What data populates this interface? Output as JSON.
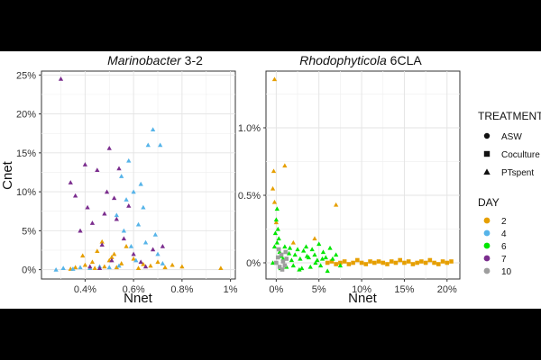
{
  "chart_data": [
    {
      "type": "scatter",
      "title_italic": "Marinobacter",
      "title_rest": " 3-2",
      "xlabel": "Nnet",
      "ylabel": "Cnet",
      "xlim": [
        0.0022,
        0.0102
      ],
      "ylim": [
        -0.012,
        0.255
      ],
      "xticks": [
        {
          "v": 0.004,
          "label": "0.4%"
        },
        {
          "v": 0.006,
          "label": "0.6%"
        },
        {
          "v": 0.008,
          "label": "0.8%"
        },
        {
          "v": 0.01,
          "label": "1%"
        }
      ],
      "yticks": [
        {
          "v": 0,
          "label": "0%"
        },
        {
          "v": 0.05,
          "label": "5%"
        },
        {
          "v": 0.1,
          "label": "10%"
        },
        {
          "v": 0.15,
          "label": "15%"
        },
        {
          "v": 0.2,
          "label": "20%"
        },
        {
          "v": 0.25,
          "label": "25%"
        }
      ],
      "grid": true,
      "series": [
        {
          "day": "2",
          "color": "#E69F00",
          "treatment": "PTspent",
          "points": [
            [
              0.0034,
              0.001
            ],
            [
              0.0036,
              0.003
            ],
            [
              0.004,
              0.006
            ],
            [
              0.0043,
              0.01
            ],
            [
              0.0045,
              0.024
            ],
            [
              0.0047,
              0.036
            ],
            [
              0.0048,
              0.004
            ],
            [
              0.005,
              0.012
            ],
            [
              0.0052,
              0.02
            ],
            [
              0.0053,
              0.003
            ],
            [
              0.0055,
              0.008
            ],
            [
              0.0057,
              0.03
            ],
            [
              0.006,
              0.014
            ],
            [
              0.0062,
              0.002
            ],
            [
              0.0064,
              0.007
            ],
            [
              0.0067,
              0.005
            ],
            [
              0.007,
              0.01
            ],
            [
              0.0073,
              0.003
            ],
            [
              0.0076,
              0.006
            ],
            [
              0.008,
              0.004
            ],
            [
              0.0096,
              0.002
            ],
            [
              0.0039,
              0.018
            ],
            [
              0.0044,
              0.002
            ],
            [
              0.0051,
              0.016
            ]
          ]
        },
        {
          "day": "4",
          "color": "#56B4E9",
          "treatment": "PTspent",
          "points": [
            [
              0.0028,
              0.0
            ],
            [
              0.0031,
              0.002
            ],
            [
              0.0035,
              0.001
            ],
            [
              0.0038,
              0.003
            ],
            [
              0.0042,
              0.002
            ],
            [
              0.0046,
              0.004
            ],
            [
              0.005,
              0.003
            ],
            [
              0.0053,
              0.07
            ],
            [
              0.0055,
              0.12
            ],
            [
              0.0057,
              0.09
            ],
            [
              0.0058,
              0.14
            ],
            [
              0.006,
              0.1
            ],
            [
              0.0062,
              0.058
            ],
            [
              0.0064,
              0.08
            ],
            [
              0.0066,
              0.16
            ],
            [
              0.0068,
              0.18
            ],
            [
              0.0069,
              0.045
            ],
            [
              0.007,
              0.02
            ],
            [
              0.0072,
              0.008
            ],
            [
              0.0056,
              0.05
            ],
            [
              0.0059,
              0.03
            ],
            [
              0.0063,
              0.11
            ],
            [
              0.0065,
              0.035
            ],
            [
              0.0071,
              0.16
            ],
            [
              0.0054,
              0.005
            ],
            [
              0.0061,
              0.012
            ]
          ]
        },
        {
          "day": "7",
          "color": "#7B2D8E",
          "treatment": "PTspent",
          "points": [
            [
              0.003,
              0.245
            ],
            [
              0.0034,
              0.112
            ],
            [
              0.0036,
              0.095
            ],
            [
              0.0038,
              0.05
            ],
            [
              0.004,
              0.135
            ],
            [
              0.0041,
              0.08
            ],
            [
              0.0043,
              0.06
            ],
            [
              0.0045,
              0.128
            ],
            [
              0.0047,
              0.032
            ],
            [
              0.0048,
              0.072
            ],
            [
              0.0049,
              0.1
            ],
            [
              0.005,
              0.156
            ],
            [
              0.0052,
              0.092
            ],
            [
              0.0053,
              0.065
            ],
            [
              0.0054,
              0.13
            ],
            [
              0.0056,
              0.04
            ],
            [
              0.0058,
              0.082
            ],
            [
              0.006,
              0.02
            ],
            [
              0.0063,
              0.01
            ],
            [
              0.0065,
              0.004
            ],
            [
              0.0068,
              0.026
            ],
            [
              0.0072,
              0.03
            ],
            [
              0.0042,
              0.004
            ],
            [
              0.0046,
              0.002
            ],
            [
              0.0051,
              0.012
            ]
          ]
        }
      ]
    },
    {
      "type": "scatter",
      "title_italic": "Rhodophyticola",
      "title_rest": " 6CLA",
      "xlabel": "Nnet",
      "ylabel": "",
      "xlim": [
        -0.012,
        0.215
      ],
      "ylim": [
        -0.0012,
        0.0142
      ],
      "xticks": [
        {
          "v": 0,
          "label": "0%"
        },
        {
          "v": 0.05,
          "label": "5%"
        },
        {
          "v": 0.1,
          "label": "10%"
        },
        {
          "v": 0.15,
          "label": "15%"
        },
        {
          "v": 0.2,
          "label": "20%"
        }
      ],
      "yticks": [
        {
          "v": 0,
          "label": "0%"
        },
        {
          "v": 0.005,
          "label": "0.5%"
        },
        {
          "v": 0.01,
          "label": "1.0%"
        }
      ],
      "grid": true,
      "series": [
        {
          "day": "2",
          "color": "#E69F00",
          "treatment": "Coculture",
          "points": [
            [
              0.06,
              0.0
            ],
            [
              0.065,
              0.0001
            ],
            [
              0.07,
              -0.0001
            ],
            [
              0.075,
              0.0
            ],
            [
              0.08,
              0.0001
            ],
            [
              0.085,
              -0.0001
            ],
            [
              0.09,
              0.0
            ],
            [
              0.095,
              0.0002
            ],
            [
              0.1,
              0.0
            ],
            [
              0.105,
              -0.0001
            ],
            [
              0.11,
              0.0001
            ],
            [
              0.115,
              0.0
            ],
            [
              0.12,
              0.0001
            ],
            [
              0.125,
              0.0
            ],
            [
              0.13,
              -0.0001
            ],
            [
              0.135,
              0.0001
            ],
            [
              0.14,
              0.0
            ],
            [
              0.145,
              0.0002
            ],
            [
              0.15,
              0.0
            ],
            [
              0.155,
              0.0001
            ],
            [
              0.16,
              -0.0001
            ],
            [
              0.165,
              0.0
            ],
            [
              0.17,
              0.0001
            ],
            [
              0.175,
              0.0
            ],
            [
              0.18,
              0.0002
            ],
            [
              0.185,
              0.0
            ],
            [
              0.19,
              -0.0001
            ],
            [
              0.195,
              0.0001
            ],
            [
              0.2,
              0.0
            ],
            [
              0.205,
              0.0001
            ]
          ]
        },
        {
          "day": "2",
          "color": "#E69F00",
          "treatment": "PTspent",
          "points": [
            [
              -0.002,
              0.0136
            ],
            [
              -0.003,
              0.0068
            ],
            [
              -0.004,
              0.0055
            ],
            [
              -0.002,
              0.0045
            ],
            [
              0.0,
              0.003
            ],
            [
              0.01,
              0.0072
            ],
            [
              0.045,
              0.0018
            ],
            [
              0.07,
              0.0043
            ],
            [
              0.02,
              0.0015
            ]
          ]
        },
        {
          "day": "6",
          "color": "#00E600",
          "treatment": "PTspent",
          "points": [
            [
              -0.004,
              0.0
            ],
            [
              -0.002,
              0.0012
            ],
            [
              -0.001,
              0.0022
            ],
            [
              0.0,
              0.0032
            ],
            [
              0.001,
              0.0015
            ],
            [
              0.002,
              0.0025
            ],
            [
              0.004,
              0.0008
            ],
            [
              0.006,
              0.0005
            ],
            [
              0.008,
              0.0003
            ],
            [
              0.01,
              0.0012
            ],
            [
              0.012,
              -0.0003
            ],
            [
              0.015,
              0.0007
            ],
            [
              0.018,
              0.0002
            ],
            [
              0.02,
              -0.0002
            ],
            [
              0.022,
              0.0006
            ],
            [
              0.025,
              0.001
            ],
            [
              0.028,
              0.0003
            ],
            [
              0.03,
              -0.0004
            ],
            [
              0.032,
              0.0009
            ],
            [
              0.035,
              0.0012
            ],
            [
              0.038,
              0.0004
            ],
            [
              0.04,
              -0.0003
            ],
            [
              0.042,
              0.001
            ],
            [
              0.045,
              0.0006
            ],
            [
              0.048,
              0.0002
            ],
            [
              0.05,
              0.0014
            ],
            [
              0.052,
              -0.0002
            ],
            [
              0.055,
              0.0008
            ],
            [
              0.058,
              0.0004
            ],
            [
              0.06,
              -0.0006
            ],
            [
              0.063,
              0.0011
            ],
            [
              0.066,
              0.0003
            ],
            [
              0.07,
              0.0006
            ],
            [
              0.075,
              -0.0002
            ],
            [
              0.016,
              0.0011
            ],
            [
              0.027,
              -0.0005
            ],
            [
              0.036,
              0.0005
            ],
            [
              0.046,
              0.0
            ],
            [
              0.054,
              0.0003
            ],
            [
              0.005,
              -0.0004
            ],
            [
              0.003,
              0.0018
            ],
            [
              0.001,
              0.004
            ]
          ]
        },
        {
          "day": "10",
          "color": "#9E9E9E",
          "treatment": "Coculture",
          "points": [
            [
              0.0,
              0.0
            ],
            [
              0.002,
              0.0004
            ],
            [
              0.004,
              -0.0003
            ],
            [
              0.006,
              0.0006
            ],
            [
              0.008,
              0.0001
            ],
            [
              0.01,
              -0.0002
            ],
            [
              0.012,
              0.0003
            ],
            [
              0.003,
              0.001
            ],
            [
              0.007,
              -0.0005
            ],
            [
              0.011,
              0.0008
            ]
          ]
        }
      ]
    }
  ],
  "legend": {
    "treatment_title": "TREATMENT",
    "treatment_items": [
      {
        "label": "ASW",
        "shape": "circle"
      },
      {
        "label": "Coculture",
        "shape": "square"
      },
      {
        "label": "PTspent",
        "shape": "triangle"
      }
    ],
    "day_title": "DAY",
    "day_items": [
      {
        "label": "2",
        "color": "#E69F00"
      },
      {
        "label": "4",
        "color": "#56B4E9"
      },
      {
        "label": "6",
        "color": "#00E600"
      },
      {
        "label": "7",
        "color": "#7B2D8E"
      },
      {
        "label": "10",
        "color": "#9E9E9E"
      }
    ]
  }
}
